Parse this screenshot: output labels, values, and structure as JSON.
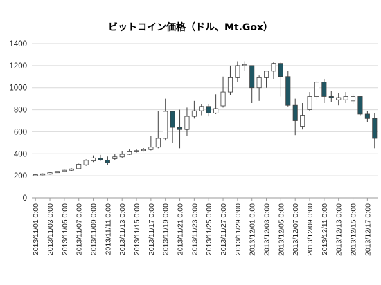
{
  "chart_data": {
    "type": "candlestick",
    "title": "ビットコイン価格（ドル、Mt.Gox）",
    "ylim": [
      0,
      1400
    ],
    "yticks": [
      0,
      200,
      400,
      600,
      800,
      1000,
      1200,
      1400
    ],
    "grid": "horizontal",
    "legend": "none",
    "colors": {
      "up": "#ffffff",
      "down": "#1f5663",
      "edge": "#404040",
      "grid": "#d9d9d9"
    },
    "x": [
      "2013/11/01 0:00",
      "2013/11/02 0:00",
      "2013/11/03 0:00",
      "2013/11/04 0:00",
      "2013/11/05 0:00",
      "2013/11/06 0:00",
      "2013/11/07 0:00",
      "2013/11/08 0:00",
      "2013/11/09 0:00",
      "2013/11/10 0:00",
      "2013/11/11 0:00",
      "2013/11/12 0:00",
      "2013/11/13 0:00",
      "2013/11/14 0:00",
      "2013/11/15 0:00",
      "2013/11/16 0:00",
      "2013/11/17 0:00",
      "2013/11/18 0:00",
      "2013/11/19 0:00",
      "2013/11/20 0:00",
      "2013/11/21 0:00",
      "2013/11/22 0:00",
      "2013/11/23 0:00",
      "2013/11/24 0:00",
      "2013/11/25 0:00",
      "2013/11/26 0:00",
      "2013/11/27 0:00",
      "2013/11/28 0:00",
      "2013/11/29 0:00",
      "2013/11/30 0:00",
      "2013/12/01 0:00",
      "2013/12/02 0:00",
      "2013/12/03 0:00",
      "2013/12/04 0:00",
      "2013/12/05 0:00",
      "2013/12/06 0:00",
      "2013/12/07 0:00",
      "2013/12/08 0:00",
      "2013/12/09 0:00",
      "2013/12/10 0:00",
      "2013/12/11 0:00",
      "2013/12/12 0:00",
      "2013/12/13 0:00",
      "2013/12/14 0:00",
      "2013/12/15 0:00",
      "2013/12/16 0:00",
      "2013/12/17 0:00",
      "2013/12/18 0:00"
    ],
    "xticklabels": [
      "2013/11/01 0:00",
      "2013/11/03 0:00",
      "2013/11/05 0:00",
      "2013/11/07 0:00",
      "2013/11/09 0:00",
      "2013/11/11 0:00",
      "2013/11/13 0:00",
      "2013/11/15 0:00",
      "2013/11/17 0:00",
      "2013/11/19 0:00",
      "2013/11/21 0:00",
      "2013/11/23 0:00",
      "2013/11/25 0:00",
      "2013/11/27 0:00",
      "2013/11/29 0:00",
      "2013/12/01 0:00",
      "2013/12/03 0:00",
      "2013/12/05 0:00",
      "2013/12/07 0:00",
      "2013/12/09 0:00",
      "2013/12/11 0:00",
      "2013/12/13 0:00",
      "2013/12/15 0:00",
      "2013/12/17 0:00"
    ],
    "open": [
      205,
      208,
      215,
      228,
      240,
      250,
      265,
      300,
      335,
      358,
      342,
      355,
      372,
      395,
      418,
      428,
      438,
      460,
      540,
      785,
      640,
      620,
      740,
      790,
      830,
      770,
      835,
      960,
      1090,
      1200,
      1200,
      1000,
      1090,
      1150,
      1220,
      1100,
      840,
      650,
      800,
      920,
      1050,
      920,
      890,
      890,
      880,
      920,
      760,
      720
    ],
    "high": [
      212,
      222,
      232,
      245,
      255,
      268,
      310,
      350,
      385,
      390,
      375,
      400,
      425,
      445,
      445,
      450,
      560,
      790,
      900,
      790,
      800,
      820,
      880,
      850,
      850,
      940,
      1100,
      1200,
      1240,
      1240,
      1200,
      1110,
      1140,
      1230,
      1230,
      1150,
      900,
      860,
      960,
      1060,
      1080,
      970,
      950,
      960,
      940,
      920,
      790,
      770
    ],
    "low": [
      200,
      205,
      210,
      222,
      232,
      245,
      258,
      290,
      325,
      335,
      300,
      340,
      360,
      390,
      410,
      420,
      430,
      450,
      520,
      500,
      450,
      560,
      720,
      750,
      740,
      760,
      820,
      930,
      1050,
      1150,
      860,
      880,
      1000,
      1080,
      920,
      830,
      570,
      620,
      790,
      890,
      860,
      870,
      840,
      860,
      850,
      750,
      690,
      450
    ],
    "close": [
      210,
      218,
      228,
      240,
      250,
      262,
      305,
      340,
      362,
      345,
      318,
      372,
      395,
      418,
      428,
      438,
      460,
      540,
      785,
      640,
      620,
      740,
      790,
      830,
      770,
      810,
      960,
      1090,
      1200,
      1210,
      1000,
      1090,
      1150,
      1220,
      1100,
      840,
      700,
      750,
      920,
      1050,
      920,
      910,
      910,
      920,
      920,
      760,
      720,
      540
    ]
  }
}
